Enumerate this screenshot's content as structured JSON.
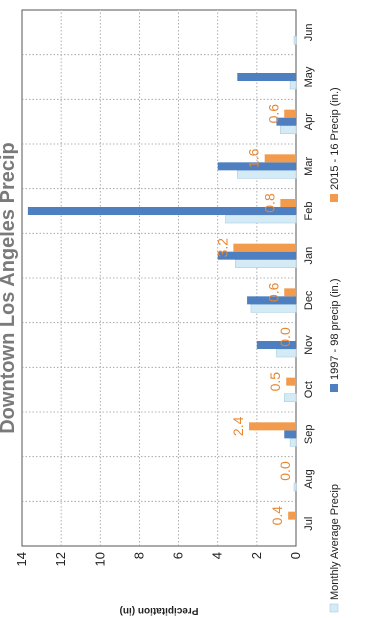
{
  "chart_data": {
    "type": "bar",
    "orientation": "horizontal",
    "title": "Downtown Los Angeles Precip",
    "ylabel": "Precipitation (in)",
    "xlim": [
      0,
      14
    ],
    "ticks": [
      0,
      2,
      4,
      6,
      8,
      10,
      12,
      14
    ],
    "grid": true,
    "legend_position": "bottom",
    "categories": [
      "Jul",
      "Aug",
      "Sep",
      "Oct",
      "Nov",
      "Dec",
      "Jan",
      "Feb",
      "Mar",
      "Apr",
      "May",
      "Jun"
    ],
    "series": [
      {
        "name": "Monthly Average Precip",
        "color": "#d4ebf6",
        "values": [
          0.0,
          0.1,
          0.3,
          0.6,
          1.0,
          2.3,
          3.1,
          3.6,
          3.0,
          0.8,
          0.3,
          0.1
        ]
      },
      {
        "name": "1997 - 98 precip (in.)",
        "color": "#4e7fc0",
        "values": [
          0.0,
          0.0,
          0.6,
          0.0,
          2.0,
          2.5,
          4.0,
          13.7,
          4.0,
          1.0,
          3.0,
          0.0
        ]
      },
      {
        "name": "2015 - 16 Precip (in.)",
        "color": "#f29b4c",
        "values": [
          0.4,
          0.0,
          2.4,
          0.5,
          0.0,
          0.6,
          3.2,
          0.8,
          1.6,
          0.6,
          0.0,
          0.0
        ]
      }
    ],
    "data_labels": {
      "series": "2015 - 16 Precip (in.)",
      "labels": [
        "0.4",
        "0.0",
        "2.4",
        "0.5",
        "0.0",
        "0.6",
        "3.2",
        "0.8",
        "1.6",
        "0.6"
      ]
    }
  }
}
